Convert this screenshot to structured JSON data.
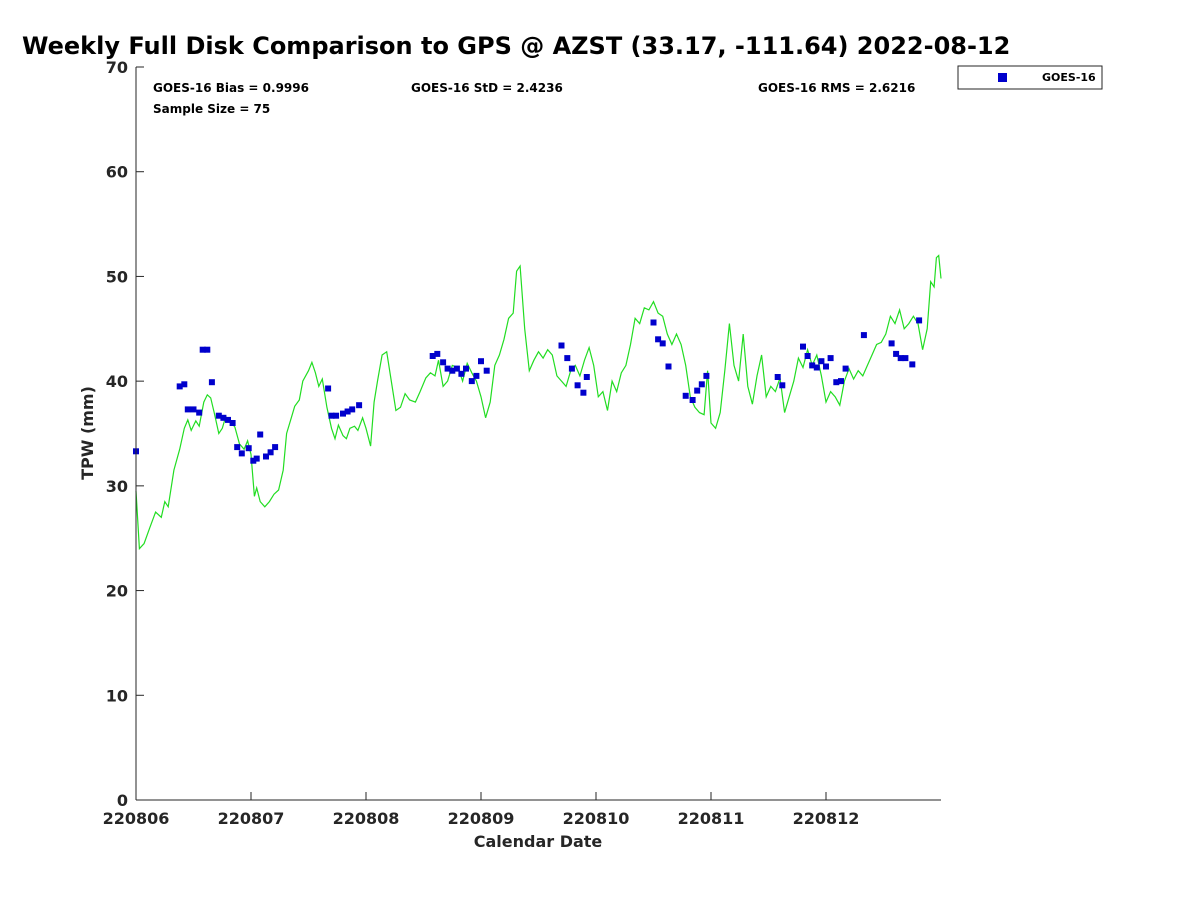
{
  "chart_data": {
    "type": "scatter",
    "title": "Weekly Full Disk Comparison to GPS @ AZST (33.17, -111.64) 2022-08-12",
    "xlabel": "Calendar Date",
    "ylabel": "TPW (mm)",
    "xlim": [
      220806,
      220813
    ],
    "ylim": [
      0,
      70
    ],
    "yticks": [
      0,
      10,
      20,
      30,
      40,
      50,
      60,
      70
    ],
    "xticks": [
      {
        "value": 220806,
        "label": "220806"
      },
      {
        "value": 220807,
        "label": "220807"
      },
      {
        "value": 220808,
        "label": "220808"
      },
      {
        "value": 220809,
        "label": "220809"
      },
      {
        "value": 220810,
        "label": "220810"
      },
      {
        "value": 220811,
        "label": "220811"
      },
      {
        "value": 220812,
        "label": "220812"
      }
    ],
    "grid": false,
    "legend_position": "top-right",
    "annotations": {
      "bias": "GOES-16 Bias = 0.9996",
      "std": "GOES-16 StD = 2.4236",
      "rms": "GOES-16 RMS = 2.6216",
      "sample": "Sample Size = 75"
    },
    "colors": {
      "goes": "#0000cc",
      "gps": "#22dd22",
      "axis": "#262626"
    },
    "series": [
      {
        "name": "GOES-16",
        "kind": "scatter",
        "points": [
          [
            220806.0,
            33.3
          ],
          [
            220806.38,
            39.5
          ],
          [
            220806.42,
            39.7
          ],
          [
            220806.45,
            37.3
          ],
          [
            220806.5,
            37.3
          ],
          [
            220806.55,
            37.0
          ],
          [
            220806.58,
            43.0
          ],
          [
            220806.62,
            43.0
          ],
          [
            220806.66,
            39.9
          ],
          [
            220806.72,
            36.7
          ],
          [
            220806.76,
            36.5
          ],
          [
            220806.8,
            36.3
          ],
          [
            220806.84,
            36.0
          ],
          [
            220806.88,
            33.7
          ],
          [
            220806.92,
            33.1
          ],
          [
            220806.98,
            33.6
          ],
          [
            220807.02,
            32.4
          ],
          [
            220807.05,
            32.6
          ],
          [
            220807.08,
            34.9
          ],
          [
            220807.13,
            32.8
          ],
          [
            220807.17,
            33.2
          ],
          [
            220807.21,
            33.7
          ],
          [
            220807.67,
            39.3
          ],
          [
            220807.7,
            36.7
          ],
          [
            220807.74,
            36.7
          ],
          [
            220807.8,
            36.9
          ],
          [
            220807.84,
            37.1
          ],
          [
            220807.88,
            37.3
          ],
          [
            220807.94,
            37.7
          ],
          [
            220808.58,
            42.4
          ],
          [
            220808.62,
            42.6
          ],
          [
            220808.67,
            41.8
          ],
          [
            220808.71,
            41.2
          ],
          [
            220808.75,
            41.0
          ],
          [
            220808.79,
            41.2
          ],
          [
            220808.83,
            40.7
          ],
          [
            220808.87,
            41.2
          ],
          [
            220808.92,
            40.0
          ],
          [
            220808.96,
            40.5
          ],
          [
            220809.0,
            41.9
          ],
          [
            220809.05,
            41.0
          ],
          [
            220809.7,
            43.4
          ],
          [
            220809.75,
            42.2
          ],
          [
            220809.79,
            41.2
          ],
          [
            220809.84,
            39.6
          ],
          [
            220809.89,
            38.9
          ],
          [
            220809.92,
            40.4
          ],
          [
            220810.5,
            45.6
          ],
          [
            220810.54,
            44.0
          ],
          [
            220810.58,
            43.6
          ],
          [
            220810.63,
            41.4
          ],
          [
            220810.78,
            38.6
          ],
          [
            220810.84,
            38.2
          ],
          [
            220810.88,
            39.1
          ],
          [
            220810.92,
            39.7
          ],
          [
            220810.96,
            40.5
          ],
          [
            220811.58,
            40.4
          ],
          [
            220811.62,
            39.6
          ],
          [
            220811.8,
            43.3
          ],
          [
            220811.84,
            42.4
          ],
          [
            220811.88,
            41.5
          ],
          [
            220811.92,
            41.3
          ],
          [
            220811.96,
            41.9
          ],
          [
            220812.0,
            41.4
          ],
          [
            220812.04,
            42.2
          ],
          [
            220812.09,
            39.9
          ],
          [
            220812.13,
            40.0
          ],
          [
            220812.17,
            41.2
          ],
          [
            220812.33,
            44.4
          ],
          [
            220812.57,
            43.6
          ],
          [
            220812.61,
            42.6
          ],
          [
            220812.65,
            42.2
          ],
          [
            220812.69,
            42.2
          ],
          [
            220812.75,
            41.6
          ],
          [
            220812.81,
            45.8
          ]
        ]
      },
      {
        "kind": "line",
        "points": [
          [
            220806.0,
            29.5
          ],
          [
            220806.03,
            24.0
          ],
          [
            220806.07,
            24.5
          ],
          [
            220806.12,
            26.0
          ],
          [
            220806.17,
            27.5
          ],
          [
            220806.22,
            27.0
          ],
          [
            220806.25,
            28.5
          ],
          [
            220806.28,
            28.0
          ],
          [
            220806.33,
            31.5
          ],
          [
            220806.38,
            33.5
          ],
          [
            220806.42,
            35.5
          ],
          [
            220806.45,
            36.3
          ],
          [
            220806.48,
            35.3
          ],
          [
            220806.52,
            36.2
          ],
          [
            220806.55,
            35.7
          ],
          [
            220806.59,
            38.0
          ],
          [
            220806.62,
            38.7
          ],
          [
            220806.65,
            38.4
          ],
          [
            220806.68,
            37.0
          ],
          [
            220806.72,
            35.0
          ],
          [
            220806.75,
            35.5
          ],
          [
            220806.78,
            36.6
          ],
          [
            220806.82,
            36.2
          ],
          [
            220806.86,
            35.6
          ],
          [
            220806.9,
            34.0
          ],
          [
            220806.94,
            33.5
          ],
          [
            220806.97,
            34.3
          ],
          [
            220807.0,
            33.0
          ],
          [
            220807.03,
            29.0
          ],
          [
            220807.05,
            29.8
          ],
          [
            220807.08,
            28.5
          ],
          [
            220807.12,
            28.0
          ],
          [
            220807.16,
            28.5
          ],
          [
            220807.2,
            29.2
          ],
          [
            220807.24,
            29.6
          ],
          [
            220807.28,
            31.5
          ],
          [
            220807.31,
            35.0
          ],
          [
            220807.35,
            36.5
          ],
          [
            220807.38,
            37.6
          ],
          [
            220807.42,
            38.2
          ],
          [
            220807.45,
            40.0
          ],
          [
            220807.5,
            41.0
          ],
          [
            220807.53,
            41.8
          ],
          [
            220807.56,
            40.8
          ],
          [
            220807.59,
            39.5
          ],
          [
            220807.62,
            40.2
          ],
          [
            220807.66,
            37.5
          ],
          [
            220807.7,
            35.5
          ],
          [
            220807.73,
            34.5
          ],
          [
            220807.76,
            35.8
          ],
          [
            220807.8,
            34.8
          ],
          [
            220807.83,
            34.5
          ],
          [
            220807.86,
            35.5
          ],
          [
            220807.9,
            35.7
          ],
          [
            220807.93,
            35.3
          ],
          [
            220807.97,
            36.5
          ],
          [
            220808.0,
            35.5
          ],
          [
            220808.04,
            33.8
          ],
          [
            220808.07,
            38.0
          ],
          [
            220808.1,
            40.0
          ],
          [
            220808.14,
            42.5
          ],
          [
            220808.18,
            42.8
          ],
          [
            220808.22,
            40.0
          ],
          [
            220808.26,
            37.2
          ],
          [
            220808.3,
            37.5
          ],
          [
            220808.34,
            38.8
          ],
          [
            220808.38,
            38.2
          ],
          [
            220808.43,
            38.0
          ],
          [
            220808.47,
            39.0
          ],
          [
            220808.52,
            40.3
          ],
          [
            220808.56,
            40.8
          ],
          [
            220808.6,
            40.5
          ],
          [
            220808.63,
            42.0
          ],
          [
            220808.67,
            39.5
          ],
          [
            220808.71,
            40.0
          ],
          [
            220808.75,
            41.5
          ],
          [
            220808.8,
            41.3
          ],
          [
            220808.84,
            40.0
          ],
          [
            220808.88,
            41.7
          ],
          [
            220808.92,
            40.8
          ],
          [
            220808.96,
            40.0
          ],
          [
            220809.0,
            38.5
          ],
          [
            220809.04,
            36.5
          ],
          [
            220809.08,
            38.0
          ],
          [
            220809.12,
            41.5
          ],
          [
            220809.16,
            42.5
          ],
          [
            220809.2,
            44.0
          ],
          [
            220809.24,
            46.0
          ],
          [
            220809.28,
            46.5
          ],
          [
            220809.31,
            50.5
          ],
          [
            220809.34,
            51.0
          ],
          [
            220809.38,
            45.0
          ],
          [
            220809.42,
            41.0
          ],
          [
            220809.46,
            42.0
          ],
          [
            220809.5,
            42.8
          ],
          [
            220809.54,
            42.2
          ],
          [
            220809.58,
            43.0
          ],
          [
            220809.62,
            42.5
          ],
          [
            220809.66,
            40.5
          ],
          [
            220809.7,
            40.0
          ],
          [
            220809.74,
            39.5
          ],
          [
            220809.78,
            41.0
          ],
          [
            220809.82,
            41.5
          ],
          [
            220809.86,
            40.5
          ],
          [
            220809.9,
            42.0
          ],
          [
            220809.94,
            43.2
          ],
          [
            220809.98,
            41.5
          ],
          [
            220810.02,
            38.5
          ],
          [
            220810.06,
            39.0
          ],
          [
            220810.1,
            37.2
          ],
          [
            220810.14,
            40.0
          ],
          [
            220810.18,
            39.0
          ],
          [
            220810.22,
            40.8
          ],
          [
            220810.26,
            41.5
          ],
          [
            220810.3,
            43.5
          ],
          [
            220810.34,
            46.0
          ],
          [
            220810.38,
            45.5
          ],
          [
            220810.42,
            47.0
          ],
          [
            220810.46,
            46.8
          ],
          [
            220810.5,
            47.6
          ],
          [
            220810.54,
            46.5
          ],
          [
            220810.58,
            46.2
          ],
          [
            220810.62,
            44.5
          ],
          [
            220810.66,
            43.5
          ],
          [
            220810.7,
            44.5
          ],
          [
            220810.74,
            43.5
          ],
          [
            220810.78,
            41.5
          ],
          [
            220810.82,
            38.5
          ],
          [
            220810.86,
            37.5
          ],
          [
            220810.9,
            37.0
          ],
          [
            220810.94,
            36.8
          ],
          [
            220810.97,
            41.0
          ],
          [
            220811.0,
            36.0
          ],
          [
            220811.04,
            35.5
          ],
          [
            220811.08,
            37.0
          ],
          [
            220811.12,
            41.0
          ],
          [
            220811.16,
            45.5
          ],
          [
            220811.2,
            41.5
          ],
          [
            220811.24,
            40.0
          ],
          [
            220811.28,
            44.5
          ],
          [
            220811.32,
            39.5
          ],
          [
            220811.36,
            37.8
          ],
          [
            220811.4,
            40.5
          ],
          [
            220811.44,
            42.5
          ],
          [
            220811.48,
            38.5
          ],
          [
            220811.52,
            39.5
          ],
          [
            220811.56,
            39.0
          ],
          [
            220811.6,
            40.3
          ],
          [
            220811.64,
            37.0
          ],
          [
            220811.68,
            38.5
          ],
          [
            220811.72,
            40.0
          ],
          [
            220811.76,
            42.2
          ],
          [
            220811.8,
            41.3
          ],
          [
            220811.84,
            43.0
          ],
          [
            220811.88,
            41.5
          ],
          [
            220811.92,
            42.5
          ],
          [
            220811.96,
            40.5
          ],
          [
            220812.0,
            38.0
          ],
          [
            220812.04,
            39.0
          ],
          [
            220812.08,
            38.5
          ],
          [
            220812.12,
            37.7
          ],
          [
            220812.16,
            40.0
          ],
          [
            220812.2,
            41.2
          ],
          [
            220812.24,
            40.2
          ],
          [
            220812.28,
            41.0
          ],
          [
            220812.32,
            40.5
          ],
          [
            220812.36,
            41.5
          ],
          [
            220812.4,
            42.5
          ],
          [
            220812.44,
            43.5
          ],
          [
            220812.48,
            43.7
          ],
          [
            220812.52,
            44.5
          ],
          [
            220812.56,
            46.2
          ],
          [
            220812.6,
            45.5
          ],
          [
            220812.64,
            46.8
          ],
          [
            220812.68,
            45.0
          ],
          [
            220812.72,
            45.5
          ],
          [
            220812.76,
            46.2
          ],
          [
            220812.8,
            45.5
          ],
          [
            220812.84,
            43.0
          ],
          [
            220812.88,
            45.0
          ],
          [
            220812.91,
            49.5
          ],
          [
            220812.94,
            49.0
          ],
          [
            220812.96,
            51.8
          ],
          [
            220812.98,
            52.0
          ],
          [
            220813.0,
            49.8
          ]
        ]
      }
    ]
  }
}
